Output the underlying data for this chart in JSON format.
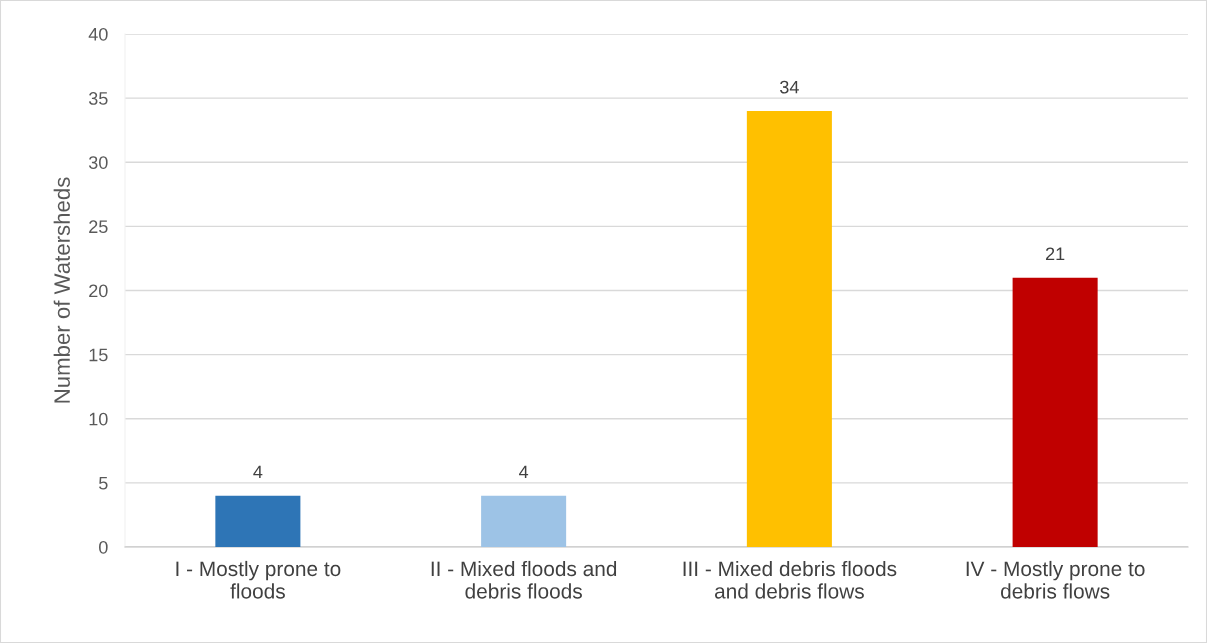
{
  "chart_data": {
    "type": "bar",
    "ylabel": "Number of Watersheds",
    "categories": [
      "I - Mostly prone to\nfloods",
      "II - Mixed floods and\ndebris floods",
      "III - Mixed debris floods\nand debris flows",
      "IV - Mostly prone to\ndebris flows"
    ],
    "values": [
      4,
      4,
      34,
      21
    ],
    "colors": [
      "#2e75b6",
      "#9dc3e6",
      "#ffc000",
      "#c00000"
    ],
    "ylim": [
      0,
      40
    ],
    "yticks": [
      0,
      5,
      10,
      15,
      20,
      25,
      30,
      35,
      40
    ],
    "grid": "y",
    "data_labels": true,
    "legend": false
  }
}
